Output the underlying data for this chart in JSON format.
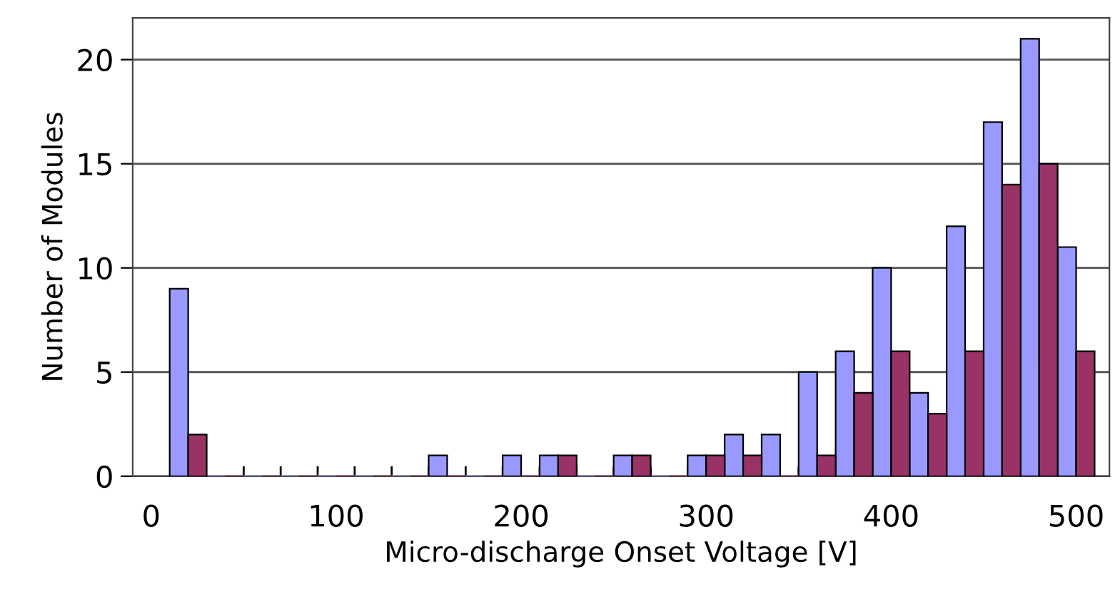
{
  "chart_data": {
    "type": "bar",
    "xlabel": "Micro-discharge Onset Voltage [V]",
    "ylabel": "Number of Modules",
    "x": [
      20,
      40,
      60,
      80,
      100,
      120,
      140,
      160,
      180,
      200,
      220,
      240,
      260,
      280,
      300,
      320,
      340,
      360,
      380,
      400,
      420,
      440,
      460,
      480,
      500
    ],
    "series": [
      {
        "color": "#9999ff",
        "values": [
          9,
          0,
          0,
          0,
          0,
          0,
          0,
          1,
          0,
          1,
          1,
          0,
          1,
          0,
          1,
          2,
          2,
          5,
          6,
          10,
          4,
          12,
          17,
          21,
          11
        ]
      },
      {
        "color": "#993366",
        "values": [
          2,
          0,
          0,
          0,
          0,
          0,
          0,
          0,
          0,
          0,
          1,
          0,
          1,
          0,
          1,
          1,
          0,
          1,
          4,
          6,
          3,
          6,
          14,
          15,
          6
        ]
      }
    ],
    "xlim": [
      -10,
      518
    ],
    "xticks": [
      0,
      100,
      200,
      300,
      400,
      500,
      {
        "value": 50,
        "label": null
      },
      {
        "value": 70,
        "label": null
      },
      {
        "value": 90,
        "label": null
      },
      {
        "value": 110,
        "label": null
      },
      {
        "value": 130,
        "label": null
      },
      {
        "value": 150,
        "label": null
      },
      {
        "value": 170,
        "label": null
      },
      {
        "value": 190,
        "label": null
      },
      {
        "value": 210,
        "label": null
      },
      {
        "value": 230,
        "label": null
      },
      {
        "value": 250,
        "label": null
      },
      {
        "value": 270,
        "label": null
      },
      {
        "value": 290,
        "label": null
      },
      {
        "value": 310,
        "label": null
      },
      {
        "value": 330,
        "label": null
      },
      {
        "value": 350,
        "label": null
      }
    ],
    "ylim": [
      0,
      22
    ],
    "yticks": [
      0,
      5,
      10,
      15,
      20
    ],
    "grid": "y"
  }
}
